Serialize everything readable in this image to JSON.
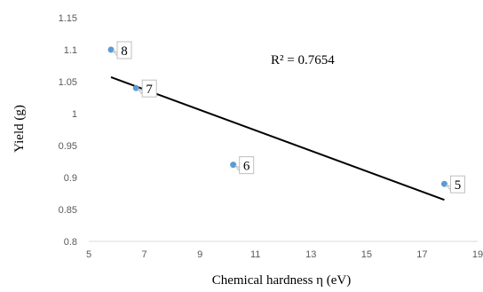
{
  "chart_data": {
    "type": "scatter",
    "title": "",
    "xlabel": "Chemical hardness η (eV)",
    "ylabel": "Yield (g)",
    "xlim": [
      5,
      19
    ],
    "ylim": [
      0.8,
      1.15
    ],
    "x_ticks": [
      "5",
      "7",
      "9",
      "11",
      "13",
      "15",
      "17",
      "19"
    ],
    "y_ticks": [
      "0.8",
      "0.85",
      "0.9",
      "0.95",
      "1",
      "1.05",
      "1.1",
      "1.15"
    ],
    "grid": false,
    "legend": "none",
    "point_color": "#5b9bd5",
    "series": [
      {
        "points": [
          {
            "x": 5.8,
            "y": 1.1,
            "label": "8"
          },
          {
            "x": 6.7,
            "y": 1.04,
            "label": "7"
          },
          {
            "x": 10.2,
            "y": 0.92,
            "label": "6"
          },
          {
            "x": 17.8,
            "y": 0.89,
            "label": "5"
          }
        ]
      }
    ],
    "trendline": {
      "type": "linear",
      "color": "#000000",
      "x_start": 5.8,
      "y_start": 1.057,
      "x_end": 17.8,
      "y_end": 0.865,
      "annotation": "R² = 0.7654"
    }
  }
}
